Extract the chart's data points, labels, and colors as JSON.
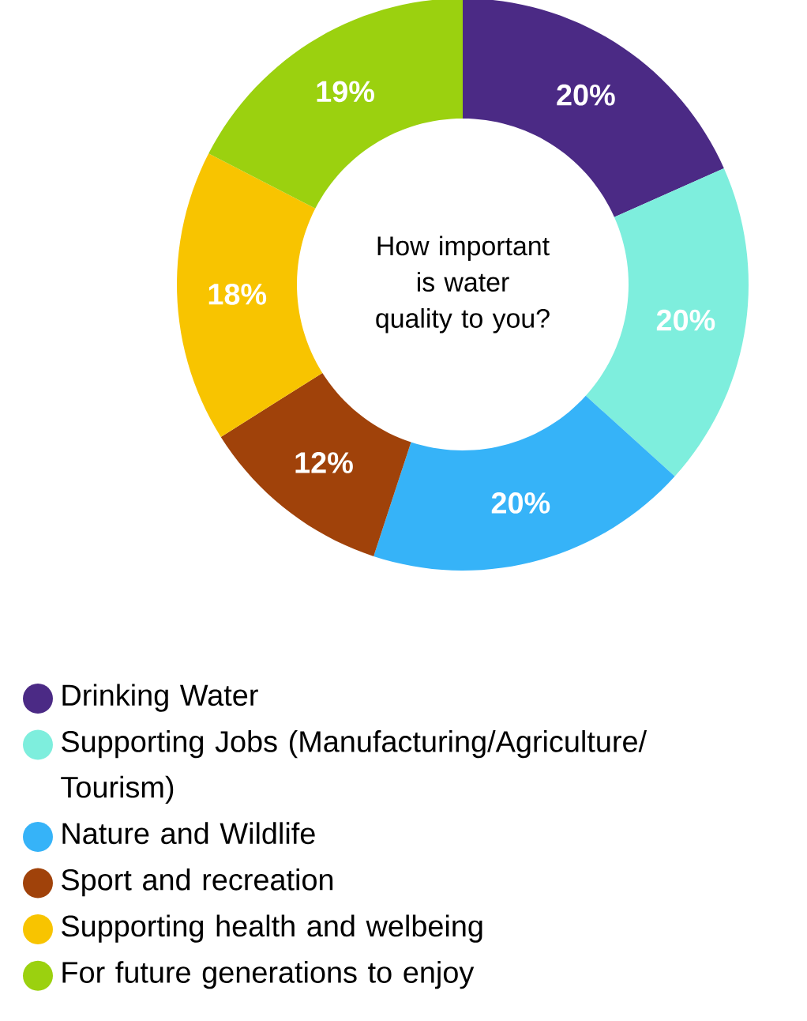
{
  "chart_data": {
    "type": "donut",
    "title": "How important is water quality to you?",
    "categories": [
      "Drinking Water",
      "Supporting Jobs (Manufacturing/Agriculture/ Tourism)",
      "Nature and Wildlife",
      "Sport and recreation",
      "Supporting health and welbeing",
      "For future generations to enjoy"
    ],
    "values": [
      20,
      20,
      20,
      12,
      18,
      19
    ],
    "value_labels": [
      "20%",
      "20%",
      "20%",
      "12%",
      "18%",
      "19%"
    ],
    "colors": [
      "#4b2a85",
      "#7eeedd",
      "#36b3f8",
      "#a0420a",
      "#f8c400",
      "#9bd10f"
    ],
    "legend": "bottom"
  }
}
